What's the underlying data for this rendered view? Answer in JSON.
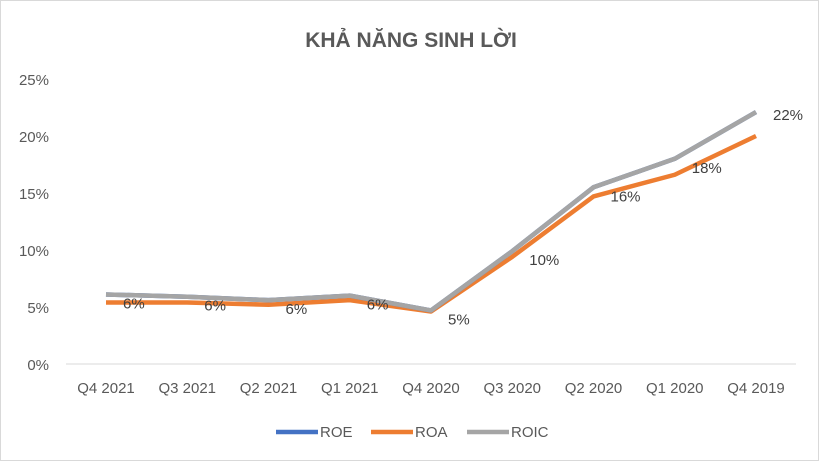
{
  "chart_data": {
    "type": "line",
    "title": "KHẢ NĂNG SINH LỜI",
    "categories": [
      "Q4 2021",
      "Q3 2021",
      "Q2 2021",
      "Q1 2021",
      "Q4 2020",
      "Q3 2020",
      "Q2 2020",
      "Q1 2020",
      "Q4 2019"
    ],
    "yticks": [
      "0%",
      "5%",
      "10%",
      "15%",
      "20%",
      "25%"
    ],
    "ylim": [
      0,
      25
    ],
    "xlabel": "",
    "ylabel": "",
    "legend_position": "bottom",
    "series": [
      {
        "name": "ROE",
        "color": "#4472C4",
        "values": [
          6.1,
          5.9,
          5.6,
          6.0,
          4.7,
          9.9,
          15.5,
          18.0,
          22.1
        ]
      },
      {
        "name": "ROA",
        "color": "#ED7D31",
        "values": [
          5.4,
          5.4,
          5.2,
          5.6,
          4.6,
          9.4,
          14.7,
          16.6,
          20.0
        ]
      },
      {
        "name": "ROIC",
        "color": "#A5A5A5",
        "values": [
          6.1,
          5.9,
          5.6,
          6.0,
          4.7,
          9.9,
          15.5,
          18.0,
          22.1
        ]
      }
    ],
    "data_labels": [
      "6%",
      "6%",
      "6%",
      "6%",
      "5%",
      "10%",
      "16%",
      "18%",
      "22%"
    ]
  }
}
